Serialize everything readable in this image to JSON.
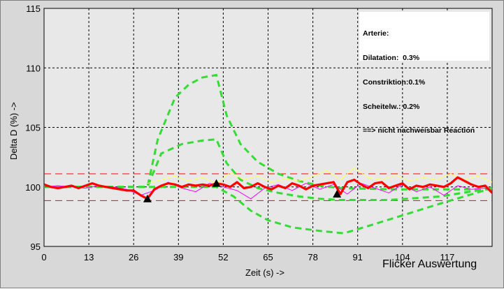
{
  "window": {
    "footer_title": "Flicker Auswertung"
  },
  "info_box": {
    "lines": [
      "Arterie:",
      "Dilatation:  0.3%",
      "Constriktion:0.1%",
      "Scheitelw.: 0.2%",
      "==> nicht nachweisbar Reaction"
    ]
  },
  "chart_data": {
    "type": "line",
    "title": "",
    "xlabel": "Zeit (s) ->",
    "ylabel": "Delta D (%) ->",
    "xlim": [
      0,
      130
    ],
    "ylim": [
      95,
      115
    ],
    "xticks": [
      0,
      13,
      26,
      39,
      52,
      65,
      78,
      91,
      104,
      117
    ],
    "yticks": [
      95,
      100,
      105,
      110,
      115
    ],
    "grid": true,
    "colors": {
      "main": "#ff0000",
      "secondary": "#ff00ff",
      "tertiary": "#ffff66",
      "band": "#ff0000",
      "envelope": "#33dd33",
      "markers": "#000000",
      "grid": "#000000",
      "plot_bg": "#e8e8e8"
    },
    "reference_band": [
      98.85,
      101.1
    ],
    "markers": [
      {
        "x": 30,
        "y": 99.0
      },
      {
        "x": 50,
        "y": 100.3
      },
      {
        "x": 85,
        "y": 99.4
      }
    ],
    "envelope_series": [
      {
        "x": [
          0,
          30,
          33,
          38,
          42,
          46,
          50,
          53,
          57,
          62,
          68,
          74,
          80,
          86,
          100,
          110,
          120,
          130
        ],
        "y": [
          100,
          100,
          104,
          107.5,
          108.6,
          109.2,
          109.4,
          106,
          103.6,
          102.1,
          101.1,
          100.5,
          100.1,
          99.9,
          99.8,
          99.8,
          99.8,
          99.8
        ]
      },
      {
        "x": [
          0,
          30,
          34,
          40,
          46,
          50,
          53,
          57,
          62,
          68,
          74,
          80,
          86,
          100,
          115,
          130
        ],
        "y": [
          100,
          100,
          102.8,
          103.6,
          103.9,
          104,
          102,
          100.6,
          99.9,
          99.5,
          99.2,
          99.0,
          98.9,
          98.9,
          99.2,
          99.9
        ]
      },
      {
        "x": [
          0,
          30,
          50,
          55,
          60,
          65,
          72,
          80,
          87,
          95,
          105,
          115,
          130
        ],
        "y": [
          100,
          100,
          100,
          99.2,
          98.0,
          97.2,
          96.6,
          96.3,
          96.1,
          96.8,
          97.7,
          98.6,
          99.9
        ]
      }
    ],
    "series": [
      {
        "x": [
          0,
          2,
          4,
          6,
          8,
          10,
          12,
          14,
          16,
          18,
          20,
          22,
          24,
          26,
          28,
          30,
          32,
          34,
          36,
          38,
          40,
          42,
          44,
          46,
          48,
          50,
          52,
          54,
          56,
          58,
          60,
          62,
          64,
          66,
          68,
          70,
          72,
          74,
          76,
          78,
          80,
          82,
          84,
          86,
          88,
          90,
          92,
          94,
          96,
          98,
          100,
          102,
          104,
          106,
          108,
          110,
          112,
          114,
          116,
          118,
          120,
          122,
          124,
          126,
          128,
          130
        ],
        "y": [
          100.2,
          100,
          99.9,
          100,
          100.1,
          99.9,
          100.1,
          100.3,
          100.1,
          100,
          99.9,
          99.8,
          99.7,
          99.7,
          99.3,
          99.0,
          99.8,
          100.1,
          100.3,
          100.2,
          100,
          100.2,
          100.1,
          100.2,
          100.1,
          100.3,
          100.2,
          100,
          100.4,
          99.9,
          100.0,
          100.3,
          100.0,
          99.8,
          100.1,
          99.9,
          100.3,
          100.1,
          99.8,
          100.1,
          100.2,
          100.3,
          100.4,
          99.4,
          100.4,
          100.6,
          100.2,
          99.9,
          100.3,
          100.4,
          99.9,
          100.1,
          100.3,
          99.8,
          100.1,
          100.0,
          100.2,
          100.1,
          100.0,
          100.3,
          100.8,
          100.5,
          100.2,
          100.0,
          100.1,
          99.5
        ]
      },
      {
        "x": [
          0,
          4,
          8,
          12,
          16,
          20,
          24,
          28,
          32,
          36,
          40,
          44,
          48,
          52,
          56,
          60,
          64,
          68,
          72,
          76,
          80,
          84,
          88,
          92,
          96,
          100,
          104,
          108,
          112,
          116,
          120,
          124,
          128,
          130
        ],
        "y": [
          100.0,
          100.1,
          100.0,
          99.9,
          100.1,
          100,
          99.8,
          99.3,
          99.7,
          100.4,
          99.9,
          99.6,
          100.3,
          100.0,
          99.7,
          99.0,
          99.9,
          100.2,
          99.7,
          100.3,
          99.8,
          100.2,
          99.4,
          100.3,
          99.9,
          99.5,
          100.2,
          99.6,
          100.0,
          99.3,
          100.1,
          99.8,
          99.9,
          99.6
        ]
      },
      {
        "x": [
          30,
          34,
          38,
          42,
          46,
          50,
          54,
          58,
          62,
          66,
          70,
          74,
          78,
          82,
          86,
          90,
          94,
          98,
          102,
          106,
          110,
          114,
          118,
          122,
          126,
          130
        ],
        "y": [
          100.3,
          100.6,
          100.9,
          100.5,
          100.8,
          100.3,
          101.2,
          100.6,
          100.9,
          100.4,
          100.7,
          100.5,
          100.9,
          101.4,
          100.6,
          101.6,
          100.8,
          100.6,
          101.0,
          100.5,
          100.8,
          100.6,
          101.1,
          100.6,
          100.9,
          100.4
        ]
      }
    ]
  }
}
